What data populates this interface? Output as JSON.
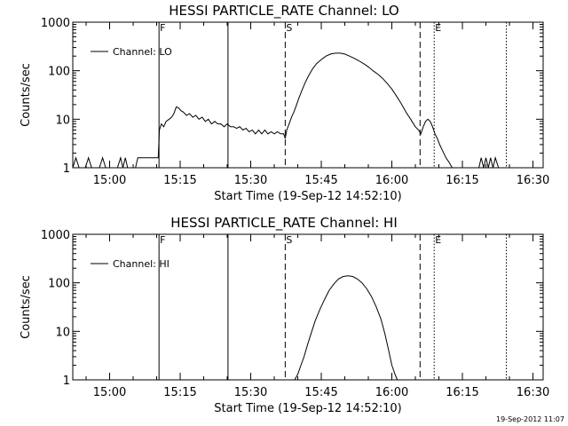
{
  "chart_data": [
    {
      "type": "line",
      "title": "HESSI PARTICLE_RATE Channel: LO",
      "xlabel": "Start Time (19-Sep-12 14:52:10)",
      "ylabel": "Counts/sec",
      "yscale": "log",
      "ylim": [
        1,
        1000
      ],
      "xlim": [
        "14:52:10",
        "16:32:10"
      ],
      "xticks": [
        "15:00",
        "15:15",
        "15:30",
        "15:45",
        "16:00",
        "16:15",
        "16:30"
      ],
      "yticks": [
        "1",
        "10",
        "100",
        "1000"
      ],
      "legend": {
        "entry": "Channel: LO",
        "position": "top-left"
      },
      "markers": [
        {
          "time": "15:10:30",
          "style": "solid",
          "label": "F"
        },
        {
          "time": "15:25:10",
          "style": "solid",
          "label": ""
        },
        {
          "time": "15:37:20",
          "style": "dashed",
          "label": "S"
        },
        {
          "time": "16:06:00",
          "style": "dashed",
          "label": ""
        },
        {
          "time": "16:09:00",
          "style": "dotted",
          "label": "E"
        },
        {
          "time": "16:24:20",
          "style": "dotted",
          "label": ""
        }
      ],
      "series": [
        {
          "name": "Channel: LO",
          "points": [
            [
              "14:52:10",
              1
            ],
            [
              "14:52:50",
              1.6
            ],
            [
              "14:53:30",
              1
            ],
            [
              "14:54:50",
              1
            ],
            [
              "14:55:30",
              1.6
            ],
            [
              "14:56:10",
              1
            ],
            [
              "14:57:50",
              1
            ],
            [
              "14:58:30",
              1.6
            ],
            [
              "14:59:10",
              1
            ],
            [
              "15:01:40",
              1
            ],
            [
              "15:02:20",
              1.6
            ],
            [
              "15:02:50",
              1
            ],
            [
              "15:03:20",
              1.6
            ],
            [
              "15:03:50",
              1
            ],
            [
              "15:05:30",
              1
            ],
            [
              "15:06:00",
              1.6
            ],
            [
              "15:10:20",
              1.6
            ],
            [
              "15:10:35",
              6
            ],
            [
              "15:11:00",
              8
            ],
            [
              "15:11:30",
              7
            ],
            [
              "15:12:00",
              9
            ],
            [
              "15:12:40",
              10
            ],
            [
              "15:13:10",
              11
            ],
            [
              "15:13:40",
              13
            ],
            [
              "15:14:10",
              18
            ],
            [
              "15:14:40",
              17
            ],
            [
              "15:15:10",
              15
            ],
            [
              "15:15:40",
              14
            ],
            [
              "15:16:20",
              12
            ],
            [
              "15:17:00",
              13
            ],
            [
              "15:17:40",
              11
            ],
            [
              "15:18:20",
              12
            ],
            [
              "15:19:00",
              10
            ],
            [
              "15:19:40",
              11
            ],
            [
              "15:20:20",
              9
            ],
            [
              "15:21:00",
              10
            ],
            [
              "15:21:40",
              8
            ],
            [
              "15:22:20",
              9
            ],
            [
              "15:23:00",
              8
            ],
            [
              "15:23:40",
              8
            ],
            [
              "15:24:20",
              7
            ],
            [
              "15:25:00",
              8
            ],
            [
              "15:25:40",
              7
            ],
            [
              "15:26:20",
              7
            ],
            [
              "15:27:00",
              6.5
            ],
            [
              "15:27:40",
              7
            ],
            [
              "15:28:20",
              6
            ],
            [
              "15:29:00",
              6.5
            ],
            [
              "15:29:40",
              5.5
            ],
            [
              "15:30:20",
              6
            ],
            [
              "15:31:00",
              5
            ],
            [
              "15:31:40",
              6
            ],
            [
              "15:32:20",
              5
            ],
            [
              "15:33:00",
              6
            ],
            [
              "15:33:40",
              5
            ],
            [
              "15:34:20",
              5.5
            ],
            [
              "15:35:00",
              5
            ],
            [
              "15:35:40",
              5.5
            ],
            [
              "15:36:20",
              5
            ],
            [
              "15:37:00",
              5
            ],
            [
              "15:37:20",
              4
            ],
            [
              "15:37:40",
              6
            ],
            [
              "15:38:10",
              8
            ],
            [
              "15:38:40",
              11
            ],
            [
              "15:39:10",
              14
            ],
            [
              "15:39:40",
              19
            ],
            [
              "15:40:10",
              26
            ],
            [
              "15:40:50",
              38
            ],
            [
              "15:41:30",
              55
            ],
            [
              "15:42:20",
              80
            ],
            [
              "15:43:10",
              110
            ],
            [
              "15:44:00",
              140
            ],
            [
              "15:45:00",
              170
            ],
            [
              "15:46:00",
              200
            ],
            [
              "15:47:00",
              220
            ],
            [
              "15:48:00",
              230
            ],
            [
              "15:49:00",
              230
            ],
            [
              "15:50:00",
              220
            ],
            [
              "15:51:00",
              200
            ],
            [
              "15:52:00",
              180
            ],
            [
              "15:53:00",
              160
            ],
            [
              "15:54:00",
              140
            ],
            [
              "15:55:00",
              120
            ],
            [
              "15:56:00",
              100
            ],
            [
              "15:57:00",
              85
            ],
            [
              "15:58:00",
              70
            ],
            [
              "15:59:00",
              55
            ],
            [
              "16:00:00",
              42
            ],
            [
              "16:01:00",
              30
            ],
            [
              "16:02:00",
              21
            ],
            [
              "16:03:00",
              14
            ],
            [
              "16:04:00",
              10
            ],
            [
              "16:05:00",
              7
            ],
            [
              "16:05:40",
              6
            ],
            [
              "16:06:10",
              5
            ],
            [
              "16:06:40",
              7
            ],
            [
              "16:07:10",
              9
            ],
            [
              "16:07:40",
              10
            ],
            [
              "16:08:10",
              9
            ],
            [
              "16:08:40",
              7
            ],
            [
              "16:09:10",
              5
            ],
            [
              "16:09:40",
              4
            ],
            [
              "16:10:10",
              3
            ],
            [
              "16:10:50",
              2.2
            ],
            [
              "16:11:30",
              1.6
            ],
            [
              "16:12:10",
              1.3
            ],
            [
              "16:12:50",
              1
            ],
            [
              "16:18:30",
              1
            ],
            [
              "16:19:00",
              1.6
            ],
            [
              "16:19:30",
              1
            ],
            [
              "16:20:00",
              1.6
            ],
            [
              "16:20:30",
              1
            ],
            [
              "16:21:00",
              1.6
            ],
            [
              "16:21:30",
              1
            ],
            [
              "16:22:00",
              1.6
            ],
            [
              "16:22:40",
              1
            ]
          ]
        }
      ]
    },
    {
      "type": "line",
      "title": "HESSI PARTICLE_RATE Channel: HI",
      "xlabel": "Start Time (19-Sep-12 14:52:10)",
      "ylabel": "Counts/sec",
      "yscale": "log",
      "ylim": [
        1,
        1000
      ],
      "xlim": [
        "14:52:10",
        "16:32:10"
      ],
      "xticks": [
        "15:00",
        "15:15",
        "15:30",
        "15:45",
        "16:00",
        "16:15",
        "16:30"
      ],
      "yticks": [
        "1",
        "10",
        "100",
        "1000"
      ],
      "legend": {
        "entry": "Channel: HI",
        "position": "top-left"
      },
      "markers": [
        {
          "time": "15:10:30",
          "style": "solid",
          "label": "F"
        },
        {
          "time": "15:25:10",
          "style": "solid",
          "label": ""
        },
        {
          "time": "15:37:20",
          "style": "dashed",
          "label": "S"
        },
        {
          "time": "16:06:00",
          "style": "dashed",
          "label": ""
        },
        {
          "time": "16:09:00",
          "style": "dotted",
          "label": "E"
        },
        {
          "time": "16:24:20",
          "style": "dotted",
          "label": ""
        }
      ],
      "series": [
        {
          "name": "Channel: HI",
          "points": [
            [
              "15:39:20",
              1
            ],
            [
              "15:40:00",
              1.3
            ],
            [
              "15:40:40",
              2
            ],
            [
              "15:41:20",
              3
            ],
            [
              "15:42:00",
              5
            ],
            [
              "15:42:50",
              9
            ],
            [
              "15:43:40",
              16
            ],
            [
              "15:44:40",
              28
            ],
            [
              "15:45:40",
              45
            ],
            [
              "15:46:40",
              70
            ],
            [
              "15:47:40",
              95
            ],
            [
              "15:48:40",
              120
            ],
            [
              "15:49:40",
              135
            ],
            [
              "15:50:40",
              140
            ],
            [
              "15:51:40",
              135
            ],
            [
              "15:52:40",
              120
            ],
            [
              "15:53:40",
              100
            ],
            [
              "15:54:40",
              75
            ],
            [
              "15:55:40",
              52
            ],
            [
              "15:56:40",
              32
            ],
            [
              "15:57:40",
              18
            ],
            [
              "15:58:30",
              9
            ],
            [
              "15:59:20",
              4
            ],
            [
              "16:00:00",
              2
            ],
            [
              "16:00:40",
              1.3
            ],
            [
              "16:01:10",
              1
            ]
          ]
        }
      ]
    }
  ],
  "footer_stamp": "19-Sep-2012 11:07"
}
